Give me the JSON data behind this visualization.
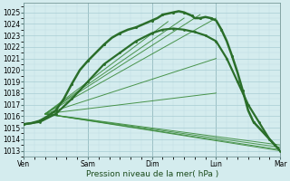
{
  "xlabel": "Pression niveau de la mer( hPa )",
  "bg_color": "#d4ecee",
  "grid_major_color": "#a8cdd4",
  "grid_minor_color": "#c0dde2",
  "line_color_dark": "#2a6e2a",
  "line_color_mid": "#3a8a3a",
  "ylim": [
    1012.5,
    1025.8
  ],
  "yticks": [
    1013,
    1014,
    1015,
    1016,
    1017,
    1018,
    1019,
    1020,
    1021,
    1022,
    1023,
    1024,
    1025
  ],
  "xtick_labels": [
    "Ven",
    "Sam",
    "Dim",
    "Lun",
    "Mar"
  ],
  "xtick_pos": [
    0,
    24,
    48,
    72,
    96
  ],
  "total_hours": 96,
  "convergence_x": 8,
  "convergence_y": 1016.2,
  "fan_endpoints": [
    [
      96,
      1013.0
    ],
    [
      96,
      1013.1
    ],
    [
      96,
      1013.3
    ],
    [
      96,
      1013.5
    ],
    [
      60,
      1024.5
    ],
    [
      66,
      1024.8
    ],
    [
      54,
      1024.2
    ],
    [
      72,
      1024.5
    ],
    [
      72,
      1021.0
    ],
    [
      72,
      1018.0
    ]
  ],
  "main_line": [
    [
      0,
      1015.3
    ],
    [
      3,
      1015.4
    ],
    [
      6,
      1015.6
    ],
    [
      9,
      1016.0
    ],
    [
      12,
      1016.5
    ],
    [
      15,
      1017.5
    ],
    [
      18,
      1018.8
    ],
    [
      21,
      1020.0
    ],
    [
      24,
      1020.8
    ],
    [
      27,
      1021.5
    ],
    [
      30,
      1022.2
    ],
    [
      33,
      1022.8
    ],
    [
      36,
      1023.2
    ],
    [
      39,
      1023.5
    ],
    [
      42,
      1023.7
    ],
    [
      45,
      1024.0
    ],
    [
      48,
      1024.3
    ],
    [
      50,
      1024.5
    ],
    [
      52,
      1024.8
    ],
    [
      54,
      1024.9
    ],
    [
      56,
      1025.0
    ],
    [
      58,
      1025.1
    ],
    [
      60,
      1025.0
    ],
    [
      62,
      1024.8
    ],
    [
      63,
      1024.7
    ],
    [
      64,
      1024.5
    ],
    [
      66,
      1024.5
    ],
    [
      68,
      1024.6
    ],
    [
      70,
      1024.5
    ],
    [
      72,
      1024.3
    ],
    [
      74,
      1023.5
    ],
    [
      76,
      1022.5
    ],
    [
      78,
      1021.2
    ],
    [
      80,
      1019.8
    ],
    [
      82,
      1018.2
    ],
    [
      84,
      1016.5
    ],
    [
      86,
      1015.5
    ],
    [
      88,
      1015.0
    ],
    [
      90,
      1014.5
    ],
    [
      92,
      1014.0
    ],
    [
      94,
      1013.5
    ],
    [
      96,
      1013.0
    ]
  ],
  "second_main_line": [
    [
      0,
      1015.3
    ],
    [
      6,
      1015.5
    ],
    [
      12,
      1016.2
    ],
    [
      18,
      1017.5
    ],
    [
      24,
      1019.0
    ],
    [
      30,
      1020.5
    ],
    [
      36,
      1021.5
    ],
    [
      42,
      1022.5
    ],
    [
      48,
      1023.2
    ],
    [
      52,
      1023.5
    ],
    [
      56,
      1023.6
    ],
    [
      60,
      1023.5
    ],
    [
      64,
      1023.3
    ],
    [
      68,
      1023.0
    ],
    [
      72,
      1022.5
    ],
    [
      76,
      1021.0
    ],
    [
      80,
      1019.0
    ],
    [
      84,
      1017.0
    ],
    [
      88,
      1015.5
    ],
    [
      92,
      1014.0
    ],
    [
      96,
      1013.0
    ]
  ]
}
